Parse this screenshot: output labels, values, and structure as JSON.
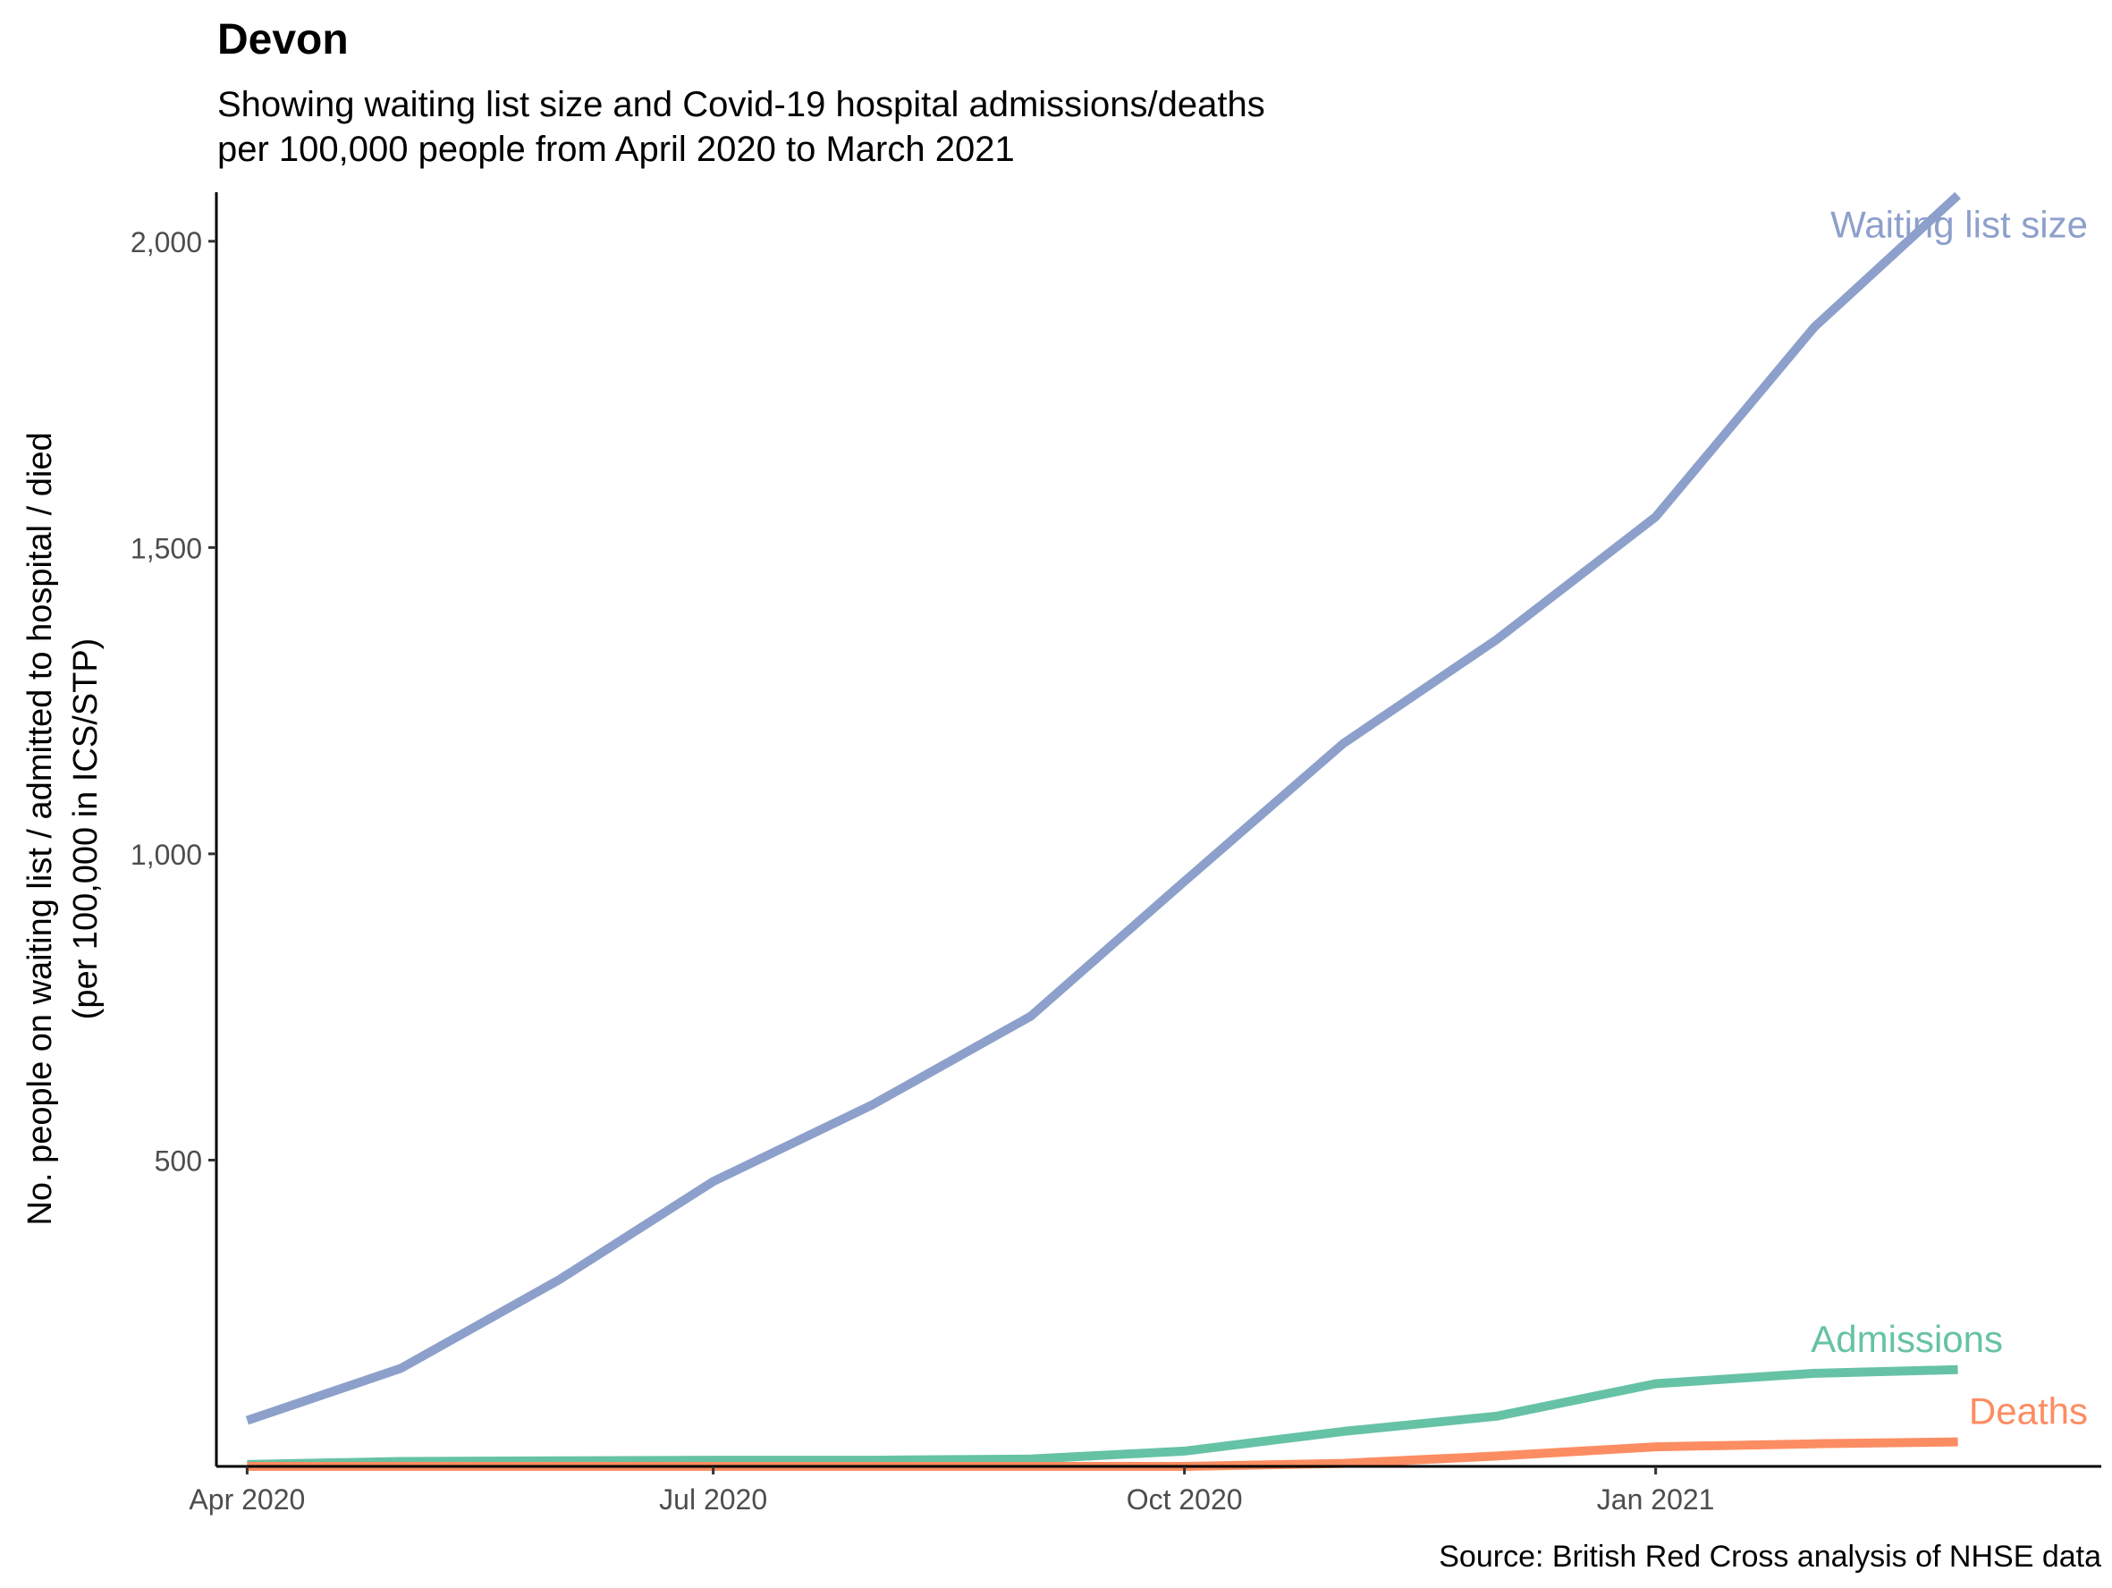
{
  "chart_data": {
    "type": "line",
    "title": "Devon",
    "subtitle_lines": [
      "Showing waiting list size and Covid-19 hospital admissions/deaths",
      "per 100,000 people from April 2020 to March 2021"
    ],
    "ylabel_lines": [
      "No. people on waiting list / admitted to hospital / died",
      "(per 100,000 in ICS/STP)"
    ],
    "xlabel": "",
    "caption": "Source: British Red Cross analysis of NHSE data",
    "x": [
      "2020-04-01",
      "2020-05-01",
      "2020-06-01",
      "2020-07-01",
      "2020-08-01",
      "2020-09-01",
      "2020-10-01",
      "2020-11-01",
      "2020-12-01",
      "2021-01-01",
      "2021-02-01",
      "2021-03-01"
    ],
    "xlim": [
      "2020-03-26",
      "2021-03-29"
    ],
    "ylim": [
      0,
      2080
    ],
    "x_ticks": [
      {
        "date": "2020-04-01",
        "label": "Apr 2020"
      },
      {
        "date": "2020-07-01",
        "label": "Jul 2020"
      },
      {
        "date": "2020-10-01",
        "label": "Oct 2020"
      },
      {
        "date": "2021-01-01",
        "label": "Jan 2021"
      }
    ],
    "y_ticks": [
      {
        "value": 500,
        "label": "500"
      },
      {
        "value": 1000,
        "label": "1,000"
      },
      {
        "value": 1500,
        "label": "1,500"
      },
      {
        "value": 2000,
        "label": "2,000"
      }
    ],
    "grid": false,
    "legend": "direct labels at line ends",
    "series": [
      {
        "name": "Waiting list size",
        "color": "#8DA0CB",
        "values": [
          75,
          160,
          305,
          465,
          590,
          735,
          955,
          1180,
          1350,
          1550,
          1860,
          2075
        ]
      },
      {
        "name": "Admissions",
        "color": "#66C2A5",
        "values": [
          3,
          8,
          9,
          10,
          10,
          12,
          25,
          57,
          82,
          135,
          152,
          158
        ]
      },
      {
        "name": "Deaths",
        "color": "#FC8D62",
        "values": [
          0,
          0,
          0,
          0,
          0,
          0,
          0,
          5,
          17,
          32,
          37,
          40
        ]
      }
    ]
  }
}
